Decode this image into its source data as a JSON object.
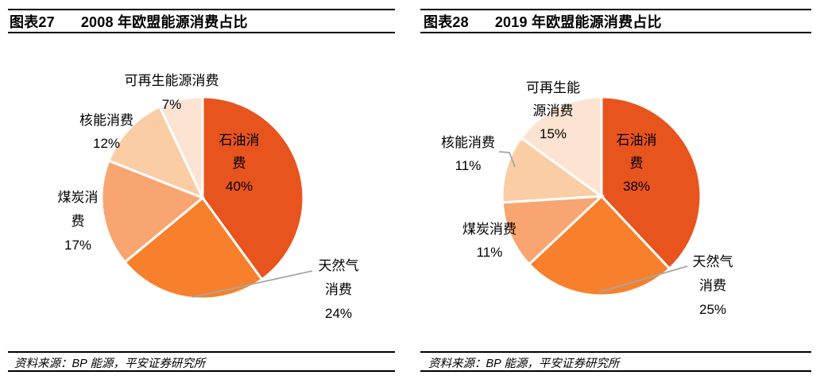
{
  "charts": [
    {
      "figure_tag": "图表27",
      "title": "2008 年欧盟能源消费占比",
      "source": "资料来源：BP 能源，平安证券研究所",
      "labels": {
        "oil": [
          "石油消",
          "费",
          "40%"
        ],
        "gas": [
          "天然气",
          "消费",
          "24%"
        ],
        "coal": [
          "煤炭消",
          "费",
          "17%"
        ],
        "nuclear": [
          "核能消费",
          "12%"
        ],
        "renewable": [
          "可再生能源消费",
          "7%"
        ]
      }
    },
    {
      "figure_tag": "图表28",
      "title": "2019 年欧盟能源消费占比",
      "source": "资料来源：BP 能源，平安证券研究所",
      "labels": {
        "oil": [
          "石油消",
          "费",
          "38%"
        ],
        "gas": [
          "天然气",
          "消费",
          "25%"
        ],
        "coal": [
          "煤炭消费",
          "11%"
        ],
        "nuclear": [
          "核能消费",
          "11%"
        ],
        "renewable": [
          "可再生能",
          "源消费",
          "15%"
        ]
      }
    }
  ],
  "chart_data": [
    {
      "type": "pie",
      "title": "2008 年欧盟能源消费占比",
      "categories": [
        "石油消费",
        "天然气消费",
        "煤炭消费",
        "核能消费",
        "可再生能源消费"
      ],
      "keys": [
        "oil",
        "gas",
        "coal",
        "nuclear",
        "renewable"
      ],
      "values": [
        40,
        24,
        17,
        12,
        7
      ],
      "unit": "%",
      "start_angle_deg": 0,
      "direction": "clockwise",
      "colors": [
        "#E8541E",
        "#F8802C",
        "#F9A571",
        "#FACDA5",
        "#FCE3D2"
      ],
      "slice_border_color": "#FFFFFF",
      "leader_line_color": "#A6A6A6"
    },
    {
      "type": "pie",
      "title": "2019 年欧盟能源消费占比",
      "categories": [
        "石油消费",
        "天然气消费",
        "煤炭消费",
        "核能消费",
        "可再生能源消费"
      ],
      "keys": [
        "oil",
        "gas",
        "coal",
        "nuclear",
        "renewable"
      ],
      "values": [
        38,
        25,
        11,
        11,
        15
      ],
      "unit": "%",
      "start_angle_deg": 0,
      "direction": "clockwise",
      "colors": [
        "#E8541E",
        "#F8802C",
        "#F9A571",
        "#FACDA5",
        "#FCE3D2"
      ],
      "slice_border_color": "#FFFFFF",
      "leader_line_color": "#A6A6A6"
    }
  ]
}
